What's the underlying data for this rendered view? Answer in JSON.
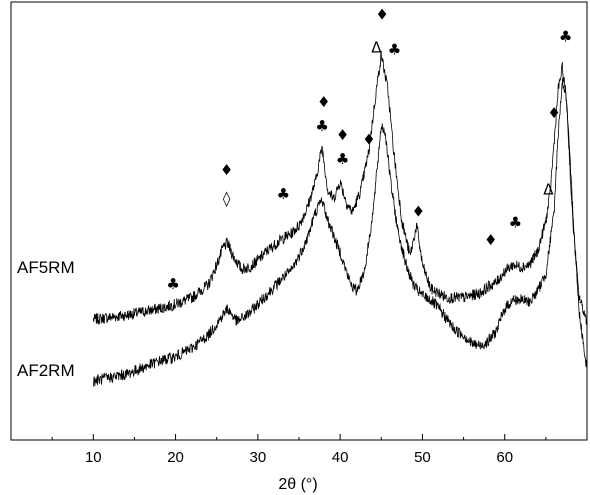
{
  "chart_data": {
    "type": "line",
    "title": "",
    "xlabel": "2θ (°)",
    "ylabel": "",
    "xlim": [
      0,
      70
    ],
    "ylim": [
      0,
      100
    ],
    "x_ticks": [
      10,
      20,
      30,
      40,
      50,
      60
    ],
    "grid": false,
    "series": [
      {
        "name": "AF5RM",
        "points": [
          [
            10,
            27.5
          ],
          [
            14,
            28.5
          ],
          [
            18,
            30
          ],
          [
            20,
            31
          ],
          [
            22,
            32.5
          ],
          [
            24,
            35.5
          ],
          [
            25,
            40
          ],
          [
            25.8,
            44
          ],
          [
            26.3,
            45
          ],
          [
            27,
            42
          ],
          [
            28,
            39
          ],
          [
            29,
            39.5
          ],
          [
            30,
            41
          ],
          [
            31,
            43
          ],
          [
            32,
            44.5
          ],
          [
            33,
            46
          ],
          [
            34,
            47
          ],
          [
            35,
            49
          ],
          [
            36,
            53
          ],
          [
            37,
            59
          ],
          [
            37.8,
            67
          ],
          [
            38.5,
            57
          ],
          [
            39.2,
            55
          ],
          [
            40,
            59
          ],
          [
            40.8,
            54
          ],
          [
            41.5,
            52
          ],
          [
            42.5,
            57
          ],
          [
            43.5,
            66
          ],
          [
            44.4,
            80
          ],
          [
            45,
            88
          ],
          [
            45.8,
            80
          ],
          [
            46.5,
            66
          ],
          [
            47.5,
            50
          ],
          [
            48.5,
            42
          ],
          [
            49.3,
            49
          ],
          [
            50,
            40
          ],
          [
            51,
            34.5
          ],
          [
            52,
            33.5
          ],
          [
            53,
            32.5
          ],
          [
            55,
            32.5
          ],
          [
            57,
            33.5
          ],
          [
            58,
            35
          ],
          [
            59,
            36
          ],
          [
            60,
            38.5
          ],
          [
            61,
            40
          ],
          [
            62,
            39.5
          ],
          [
            63,
            40
          ],
          [
            64,
            43
          ],
          [
            65,
            50
          ],
          [
            65.5,
            56
          ],
          [
            66,
            68
          ],
          [
            66.5,
            80
          ],
          [
            67,
            85
          ],
          [
            67.5,
            78
          ],
          [
            68.2,
            52
          ],
          [
            69,
            33
          ],
          [
            70,
            27
          ]
        ]
      },
      {
        "name": "AF2RM",
        "points": [
          [
            10,
            13.5
          ],
          [
            14,
            15
          ],
          [
            18,
            18
          ],
          [
            20,
            19
          ],
          [
            22,
            21
          ],
          [
            24,
            24
          ],
          [
            25,
            26.5
          ],
          [
            26.3,
            30
          ],
          [
            27.5,
            27
          ],
          [
            29,
            29
          ],
          [
            30,
            31
          ],
          [
            31,
            33
          ],
          [
            32,
            35
          ],
          [
            33,
            37
          ],
          [
            34,
            38.5
          ],
          [
            35,
            42
          ],
          [
            36,
            46
          ],
          [
            37,
            52
          ],
          [
            37.8,
            55
          ],
          [
            38.5,
            50
          ],
          [
            39,
            48
          ],
          [
            39.5,
            45
          ],
          [
            40,
            43
          ],
          [
            40.5,
            40
          ],
          [
            41,
            37
          ],
          [
            41.5,
            35
          ],
          [
            42,
            34
          ],
          [
            43,
            39
          ],
          [
            44,
            52
          ],
          [
            44.5,
            62
          ],
          [
            45,
            72
          ],
          [
            45.5,
            70
          ],
          [
            46.2,
            58
          ],
          [
            47,
            48
          ],
          [
            48,
            40
          ],
          [
            49,
            35
          ],
          [
            50,
            33
          ],
          [
            51,
            32
          ],
          [
            52,
            30
          ],
          [
            53,
            27.5
          ],
          [
            54,
            25
          ],
          [
            55,
            24
          ],
          [
            56,
            22
          ],
          [
            57,
            21.5
          ],
          [
            58,
            22.5
          ],
          [
            59,
            25
          ],
          [
            60,
            30
          ],
          [
            61,
            32
          ],
          [
            62,
            32
          ],
          [
            63,
            31.5
          ],
          [
            64,
            34
          ],
          [
            65,
            38
          ],
          [
            66,
            52
          ],
          [
            66.5,
            70
          ],
          [
            67,
            82
          ],
          [
            67.5,
            78
          ],
          [
            68.2,
            55
          ],
          [
            69,
            30
          ],
          [
            70,
            16
          ]
        ]
      }
    ],
    "series_labels": [
      "AF5RM",
      "AF2RM"
    ],
    "annotations": [
      {
        "symbol": "♣",
        "x": 19.7,
        "y": 34.5
      },
      {
        "symbol": "♦",
        "x": 26.2,
        "y": 60.5
      },
      {
        "symbol": "◊",
        "x": 26.2,
        "y": 54
      },
      {
        "symbol": "♣",
        "x": 33.1,
        "y": 55
      },
      {
        "symbol": "♦",
        "x": 38,
        "y": 76
      },
      {
        "symbol": "♣",
        "x": 37.8,
        "y": 70.5
      },
      {
        "symbol": "♦",
        "x": 40.3,
        "y": 68.5
      },
      {
        "symbol": "♣",
        "x": 40.3,
        "y": 63
      },
      {
        "symbol": "♦",
        "x": 43.5,
        "y": 67.5
      },
      {
        "symbol": "Δ",
        "x": 44.4,
        "y": 88.5
      },
      {
        "symbol": "♦",
        "x": 45.1,
        "y": 96
      },
      {
        "symbol": "♣",
        "x": 46.6,
        "y": 88
      },
      {
        "symbol": "♦",
        "x": 49.5,
        "y": 51
      },
      {
        "symbol": "♦",
        "x": 58.3,
        "y": 44.5
      },
      {
        "symbol": "♣",
        "x": 61.3,
        "y": 48.5
      },
      {
        "symbol": "Δ",
        "x": 65.3,
        "y": 56
      },
      {
        "symbol": "♦",
        "x": 66,
        "y": 73.5
      },
      {
        "symbol": "♣",
        "x": 67.4,
        "y": 91
      }
    ]
  }
}
